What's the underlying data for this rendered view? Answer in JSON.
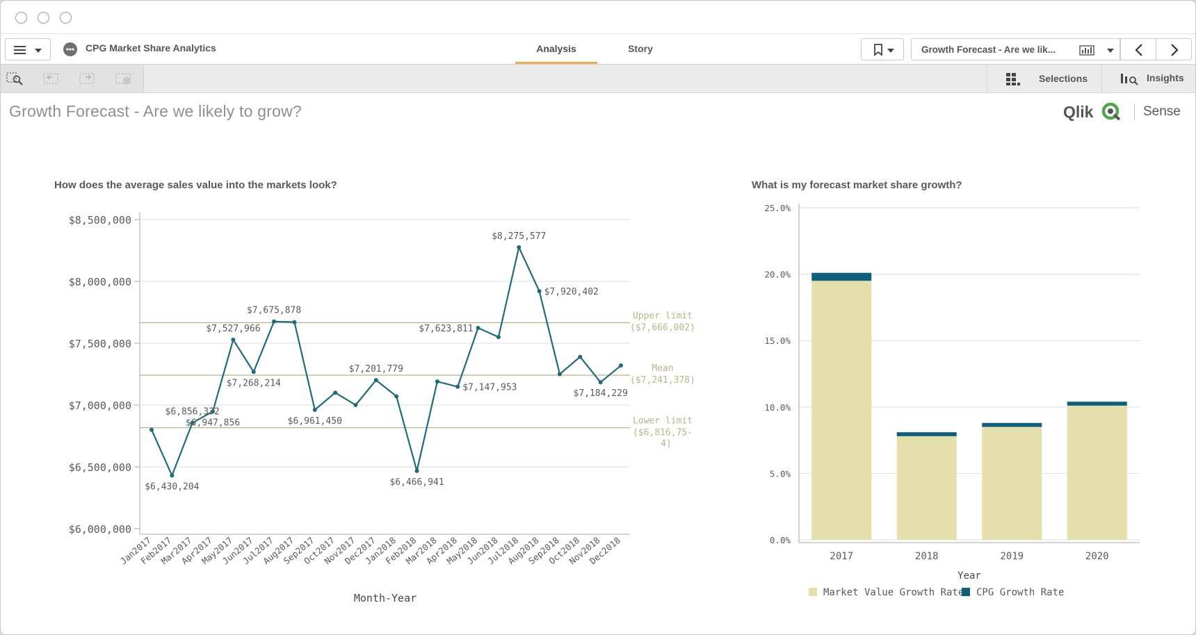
{
  "window": {
    "controls": [
      "close",
      "minimize",
      "maximize"
    ]
  },
  "toolbar": {
    "app_title": "CPG Market Share Analytics",
    "tabs": [
      {
        "label": "Analysis",
        "active": true
      },
      {
        "label": "Story",
        "active": false
      }
    ],
    "sheet_selector_label": "Growth Forecast - Are we lik..."
  },
  "selection_bar": {
    "selections_label": "Selections",
    "insights_label": "Insights"
  },
  "sheet": {
    "title": "Growth Forecast - Are we likely to grow?",
    "logo_text": "Qlik",
    "logo_suffix": "Sense"
  },
  "chart_data": [
    {
      "type": "line",
      "title": "How does the average sales value into the markets look?",
      "xlabel": "Month-Year",
      "ylabel": "",
      "ylim": [
        6000000,
        8500000
      ],
      "y_ticks": [
        "$6,000,000",
        "$6,500,000",
        "$7,000,000",
        "$7,500,000",
        "$8,000,000",
        "$8,500,000"
      ],
      "grid": true,
      "categories": [
        "Jan2017",
        "Feb2017",
        "Mar2017",
        "Apr2017",
        "May2017",
        "Jun2017",
        "Jul2017",
        "Aug2017",
        "Sep2017",
        "Oct2017",
        "Nov2017",
        "Dec2017",
        "Jan2018",
        "Feb2018",
        "Mar2018",
        "Apr2018",
        "May2018",
        "Jun2018",
        "Jul2018",
        "Aug2018",
        "Sep2018",
        "Oct2018",
        "Nov2018",
        "Dec2018"
      ],
      "values": [
        6800000,
        6430204,
        6856332,
        6947856,
        7527966,
        7268214,
        7675878,
        7670000,
        6961450,
        7100000,
        7000000,
        7201779,
        7070000,
        6466941,
        7190000,
        7147953,
        7623811,
        7550000,
        8275577,
        7920402,
        7250000,
        7390000,
        7184229,
        7320000
      ],
      "data_labels": [
        {
          "index": 1,
          "text": "$6,430,204",
          "pos": "below"
        },
        {
          "index": 2,
          "text": "$6,856,332",
          "pos": "above"
        },
        {
          "index": 3,
          "text": "$6,947,856",
          "pos": "below"
        },
        {
          "index": 4,
          "text": "$7,527,966",
          "pos": "above"
        },
        {
          "index": 5,
          "text": "$7,268,214",
          "pos": "below"
        },
        {
          "index": 6,
          "text": "$7,675,878",
          "pos": "above"
        },
        {
          "index": 8,
          "text": "$6,961,450",
          "pos": "below"
        },
        {
          "index": 11,
          "text": "$7,201,779",
          "pos": "above"
        },
        {
          "index": 13,
          "text": "$6,466,941",
          "pos": "below"
        },
        {
          "index": 15,
          "text": "$7,147,953",
          "pos": "right"
        },
        {
          "index": 16,
          "text": "$7,623,811",
          "pos": "left"
        },
        {
          "index": 18,
          "text": "$8,275,577",
          "pos": "above"
        },
        {
          "index": 19,
          "text": "$7,920,402",
          "pos": "right"
        },
        {
          "index": 22,
          "text": "$7,184,229",
          "pos": "below"
        }
      ],
      "reference_lines": [
        {
          "label": "Upper limit",
          "value_text": "($7,666,002)",
          "value": 7666002
        },
        {
          "label": "Mean",
          "value_text": "($7,241,378)",
          "value": 7241378
        },
        {
          "label": "Lower limit",
          "value_text": "($6,816,75-",
          "value_text2": "4)",
          "value": 6816754
        }
      ],
      "line_color": "#1f6b7a",
      "ref_color": "#b9b48a"
    },
    {
      "type": "bar",
      "stacked": true,
      "title": "What is my forecast market share growth?",
      "xlabel": "Year",
      "ylabel": "",
      "ylim": [
        0,
        25
      ],
      "y_ticks": [
        "0.0%",
        "5.0%",
        "10.0%",
        "15.0%",
        "20.0%",
        "25.0%"
      ],
      "categories": [
        "2017",
        "2018",
        "2019",
        "2020"
      ],
      "series": [
        {
          "name": "Market Value Growth Rate",
          "values": [
            19.5,
            7.8,
            8.5,
            10.1
          ],
          "color": "#e4dfab"
        },
        {
          "name": "CPG Growth Rate",
          "values": [
            0.6,
            0.3,
            0.3,
            0.3
          ],
          "color": "#0f5f7c"
        }
      ],
      "legend": "bottom"
    }
  ]
}
